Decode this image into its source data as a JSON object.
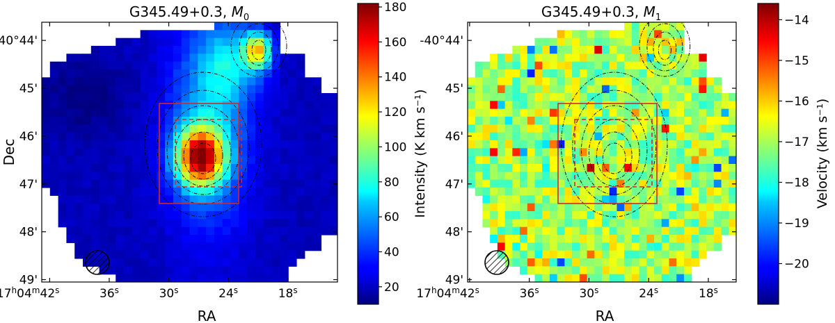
{
  "chart_data": [
    {
      "type": "heatmap",
      "title_text": "G345.49+0.3, ",
      "title_symbol": "M",
      "title_subscript": "0",
      "xlabel": "RA",
      "ylabel": "Dec",
      "x_ticks": [
        {
          "h": "17",
          "m": "04",
          "s": "42"
        },
        {
          "s": "36"
        },
        {
          "s": "30"
        },
        {
          "s": "24"
        },
        {
          "s": "18"
        }
      ],
      "y_ticks": [
        "-40°44'",
        "45'",
        "46'",
        "47'",
        "48'",
        "49'"
      ],
      "colorbar": {
        "label": "Intensity (K km s⁻¹)",
        "min": 10,
        "max": 182,
        "ticks": [
          20,
          40,
          60,
          80,
          100,
          120,
          140,
          160,
          180
        ],
        "colormap": "jet"
      },
      "features": {
        "peaks": [
          {
            "ra_s": 28.5,
            "dec_arcmin": 46.4,
            "value": 182
          },
          {
            "ra_s": 23.0,
            "dec_arcmin": 44.4,
            "value": 150
          }
        ],
        "solid_box": {
          "ra_s": [
            33.3,
            23.7
          ],
          "dec_arcmin": [
            45.4,
            47.4
          ]
        },
        "dashed_box": {
          "ra_s": [
            31.0,
            25.7
          ],
          "dec_arcmin": [
            45.75,
            47.1
          ]
        },
        "beam": "hatched circle, lower-left"
      }
    },
    {
      "type": "heatmap",
      "title_text": "G345.49+0.3, ",
      "title_symbol": "M",
      "title_subscript": "1",
      "xlabel": "RA",
      "ylabel": "",
      "x_ticks": [
        {
          "h": "17",
          "m": "04",
          "s": "42"
        },
        {
          "s": "36"
        },
        {
          "s": "30"
        },
        {
          "s": "24"
        },
        {
          "s": "18"
        }
      ],
      "y_ticks": [
        "-40°44'",
        "45'",
        "46'",
        "47'",
        "48'",
        "49'"
      ],
      "colorbar": {
        "label": "Velocity (km s⁻¹)",
        "min": -21,
        "max": -13.6,
        "ticks": [
          -14,
          -15,
          -16,
          -17,
          -18,
          -19,
          -20
        ],
        "colormap": "jet"
      },
      "features": {
        "typical_value": -17,
        "solid_box": {
          "ra_s": [
            33.3,
            23.7
          ],
          "dec_arcmin": [
            45.4,
            47.4
          ]
        },
        "dashed_box": {
          "ra_s": [
            31.0,
            25.7
          ],
          "dec_arcmin": [
            45.75,
            47.1
          ]
        },
        "beam": "hatched circle, lower-left"
      }
    }
  ],
  "colors": {
    "box": "#d62728",
    "contour": "#000000"
  }
}
